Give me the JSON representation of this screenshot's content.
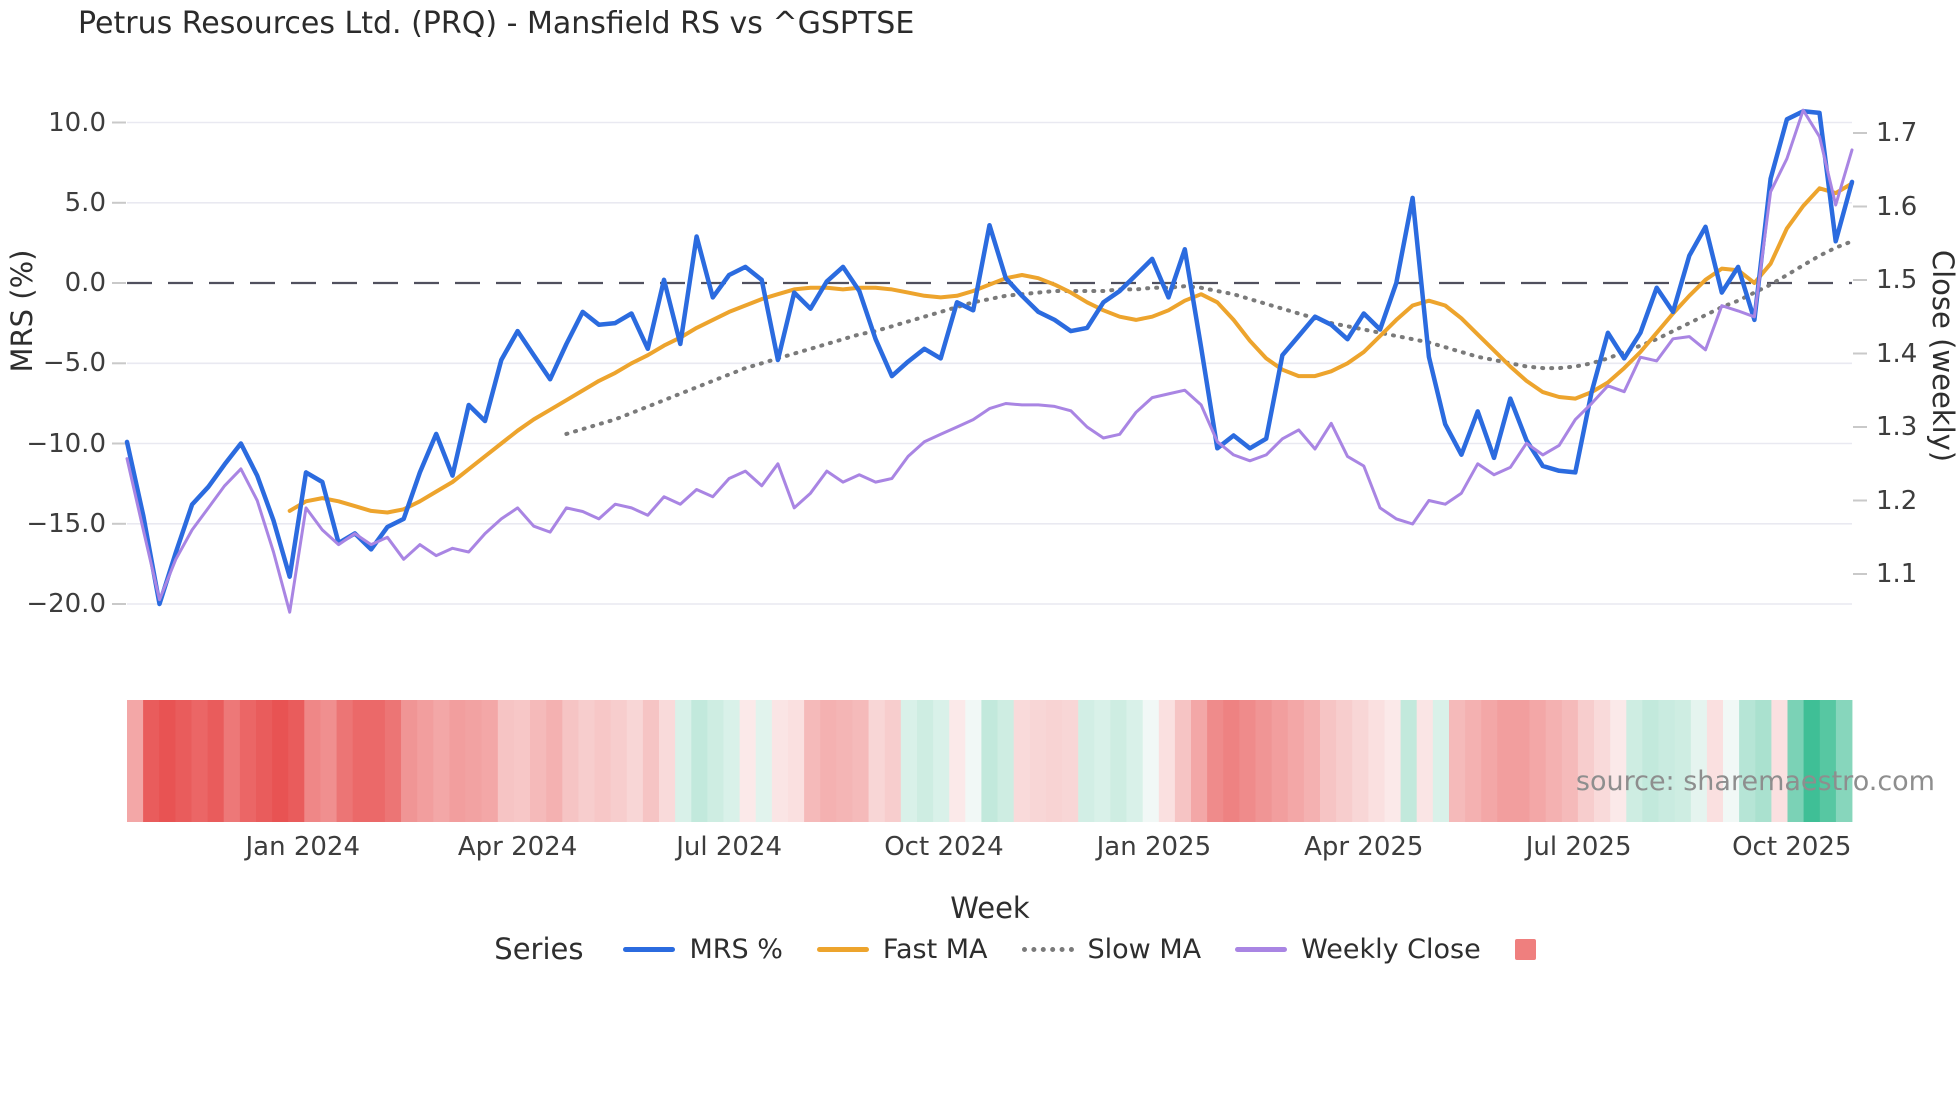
{
  "header": {
    "title": "Petrus Resources Ltd. (PRQ) - Mansfield RS vs ^GSPTSE"
  },
  "footer": {
    "source": "source: sharemaestro.com"
  },
  "chart_data": {
    "type": "line",
    "title": "Petrus Resources Ltd. (PRQ) - Mansfield RS vs ^GSPTSE",
    "xlabel": "Week",
    "ylabel_left": "MRS (%)",
    "ylabel_right": "Close (weekly)",
    "legend_title": "Series",
    "legend_swatch_color": "#ef7f7e",
    "grid": true,
    "zero_line": {
      "value": 0.0,
      "style": "dashed",
      "color": "#50505e"
    },
    "ylim_left": [
      -20.9,
      12.4
    ],
    "ylim_right": [
      1.04,
      1.77
    ],
    "n_weeks": 107,
    "x_ticks": [
      {
        "label": "Jan 2024",
        "week": 10.8
      },
      {
        "label": "Apr 2024",
        "week": 24.0
      },
      {
        "label": "Jul 2024",
        "week": 37.0
      },
      {
        "label": "Oct 2024",
        "week": 50.2
      },
      {
        "label": "Jan 2025",
        "week": 63.1
      },
      {
        "label": "Apr 2025",
        "week": 76.0
      },
      {
        "label": "Jul 2025",
        "week": 89.2
      },
      {
        "label": "Oct 2025",
        "week": 102.3
      }
    ],
    "y_ticks_left": [
      {
        "label": "10.0",
        "value": 10.0
      },
      {
        "label": "5.0",
        "value": 5.0
      },
      {
        "label": "0.0",
        "value": 0.0
      },
      {
        "label": "−5.0",
        "value": -5.0
      },
      {
        "label": "−10.0",
        "value": -10.0
      },
      {
        "label": "−15.0",
        "value": -15.0
      },
      {
        "label": "−20.0",
        "value": -20.0
      }
    ],
    "y_ticks_right": [
      {
        "label": "1.7",
        "value": 1.7
      },
      {
        "label": "1.6",
        "value": 1.6
      },
      {
        "label": "1.5",
        "value": 1.5
      },
      {
        "label": "1.4",
        "value": 1.4
      },
      {
        "label": "1.3",
        "value": 1.3
      },
      {
        "label": "1.2",
        "value": 1.2
      },
      {
        "label": "1.1",
        "value": 1.1
      }
    ],
    "series": [
      {
        "name": "MRS %",
        "color": "#2b6bdf",
        "style": "solid",
        "width": 4.5,
        "axis": "left",
        "values": [
          -9.9,
          -14.5,
          -20.0,
          -16.8,
          -13.8,
          -12.7,
          -11.3,
          -10.0,
          -12.0,
          -14.8,
          -18.3,
          -11.8,
          -12.4,
          -16.2,
          -15.6,
          -16.6,
          -15.2,
          -14.7,
          -11.8,
          -9.4,
          -12.0,
          -7.6,
          -8.6,
          -4.8,
          -3.0,
          -4.5,
          -6.0,
          -3.8,
          -1.8,
          -2.6,
          -2.5,
          -1.9,
          -4.1,
          0.2,
          -3.8,
          2.9,
          -0.9,
          0.5,
          1.0,
          0.2,
          -4.8,
          -0.6,
          -1.6,
          0.1,
          1.0,
          -0.5,
          -3.5,
          -5.8,
          -4.9,
          -4.1,
          -4.7,
          -1.2,
          -1.7,
          3.6,
          0.3,
          -0.8,
          -1.8,
          -2.3,
          -3.0,
          -2.8,
          -1.2,
          -0.5,
          0.5,
          1.5,
          -0.9,
          2.1,
          -4.0,
          -10.3,
          -9.5,
          -10.3,
          -9.7,
          -4.5,
          -3.3,
          -2.1,
          -2.6,
          -3.5,
          -1.9,
          -2.9,
          0.0,
          5.3,
          -4.6,
          -8.8,
          -10.7,
          -8.0,
          -10.9,
          -7.2,
          -9.8,
          -11.4,
          -11.7,
          -11.8,
          -6.8,
          -3.1,
          -4.7,
          -3.1,
          -0.3,
          -1.8,
          1.7,
          3.5,
          -0.6,
          1.0,
          -2.3,
          6.5,
          10.2,
          10.7,
          10.6,
          2.6,
          6.3
        ]
      },
      {
        "name": "Fast MA",
        "color": "#eda42d",
        "style": "solid",
        "width": 4,
        "axis": "left",
        "values": [
          null,
          null,
          null,
          null,
          null,
          null,
          null,
          null,
          null,
          null,
          -14.2,
          -13.6,
          -13.4,
          -13.6,
          -13.9,
          -14.2,
          -14.3,
          -14.1,
          -13.6,
          -13.0,
          -12.4,
          -11.6,
          -10.8,
          -10.0,
          -9.2,
          -8.5,
          -7.9,
          -7.3,
          -6.7,
          -6.1,
          -5.6,
          -5.0,
          -4.5,
          -3.9,
          -3.4,
          -2.8,
          -2.3,
          -1.8,
          -1.4,
          -1.0,
          -0.7,
          -0.4,
          -0.3,
          -0.3,
          -0.4,
          -0.3,
          -0.3,
          -0.4,
          -0.6,
          -0.8,
          -0.9,
          -0.8,
          -0.5,
          -0.1,
          0.3,
          0.5,
          0.3,
          -0.1,
          -0.6,
          -1.2,
          -1.7,
          -2.1,
          -2.3,
          -2.1,
          -1.7,
          -1.1,
          -0.7,
          -1.2,
          -2.3,
          -3.6,
          -4.7,
          -5.4,
          -5.8,
          -5.8,
          -5.5,
          -5.0,
          -4.3,
          -3.3,
          -2.3,
          -1.4,
          -1.1,
          -1.4,
          -2.2,
          -3.2,
          -4.2,
          -5.2,
          -6.1,
          -6.8,
          -7.1,
          -7.2,
          -6.8,
          -6.2,
          -5.3,
          -4.3,
          -3.1,
          -1.9,
          -0.8,
          0.2,
          0.9,
          0.8,
          0.0,
          1.2,
          3.4,
          4.8,
          5.9,
          5.6,
          6.2
        ]
      },
      {
        "name": "Slow MA",
        "color": "#7a7a7a",
        "style": "dotted",
        "width": 4,
        "axis": "left",
        "values": [
          null,
          null,
          null,
          null,
          null,
          null,
          null,
          null,
          null,
          null,
          null,
          null,
          null,
          null,
          null,
          null,
          null,
          null,
          null,
          null,
          null,
          null,
          null,
          null,
          null,
          null,
          null,
          -9.4,
          -9.1,
          -8.8,
          -8.5,
          -8.1,
          -7.7,
          -7.3,
          -6.9,
          -6.5,
          -6.1,
          -5.7,
          -5.3,
          -5.0,
          -4.7,
          -4.4,
          -4.1,
          -3.8,
          -3.5,
          -3.2,
          -3.0,
          -2.7,
          -2.4,
          -2.1,
          -1.8,
          -1.5,
          -1.2,
          -1.0,
          -0.8,
          -0.7,
          -0.6,
          -0.5,
          -0.5,
          -0.5,
          -0.5,
          -0.4,
          -0.4,
          -0.3,
          -0.3,
          -0.2,
          -0.3,
          -0.5,
          -0.7,
          -1.0,
          -1.3,
          -1.6,
          -1.9,
          -2.2,
          -2.5,
          -2.7,
          -2.9,
          -3.1,
          -3.3,
          -3.5,
          -3.7,
          -4.0,
          -4.3,
          -4.6,
          -4.8,
          -5.0,
          -5.2,
          -5.3,
          -5.3,
          -5.2,
          -5.0,
          -4.7,
          -4.3,
          -3.9,
          -3.5,
          -3.0,
          -2.5,
          -2.0,
          -1.5,
          -1.1,
          -0.6,
          -0.1,
          0.5,
          1.1,
          1.7,
          2.2,
          2.6
        ]
      },
      {
        "name": "Weekly Close",
        "color": "#a985e3",
        "style": "solid",
        "width": 3,
        "axis": "right",
        "values": [
          1.257,
          1.16,
          1.065,
          1.12,
          1.16,
          1.19,
          1.22,
          1.243,
          1.2,
          1.13,
          1.048,
          1.19,
          1.16,
          1.14,
          1.155,
          1.14,
          1.15,
          1.12,
          1.14,
          1.125,
          1.135,
          1.13,
          1.155,
          1.175,
          1.19,
          1.165,
          1.157,
          1.19,
          1.185,
          1.175,
          1.195,
          1.19,
          1.18,
          1.205,
          1.195,
          1.215,
          1.205,
          1.23,
          1.24,
          1.22,
          1.25,
          1.19,
          1.21,
          1.24,
          1.225,
          1.235,
          1.225,
          1.23,
          1.26,
          1.28,
          1.29,
          1.3,
          1.31,
          1.325,
          1.332,
          1.33,
          1.33,
          1.328,
          1.322,
          1.3,
          1.285,
          1.29,
          1.32,
          1.34,
          1.345,
          1.35,
          1.33,
          1.28,
          1.262,
          1.254,
          1.262,
          1.284,
          1.296,
          1.27,
          1.305,
          1.26,
          1.247,
          1.19,
          1.175,
          1.168,
          1.2,
          1.195,
          1.21,
          1.25,
          1.235,
          1.245,
          1.278,
          1.262,
          1.275,
          1.31,
          1.332,
          1.356,
          1.348,
          1.395,
          1.39,
          1.42,
          1.423,
          1.405,
          1.465,
          1.458,
          1.45,
          1.62,
          1.665,
          1.731,
          1.695,
          1.602,
          1.677
        ]
      }
    ],
    "heatmap": {
      "description": "weekly shading strip under chart, red=negative green=positive",
      "color_negative": "#e64040",
      "color_positive": "#10b07c",
      "values": [
        -0.45,
        -0.85,
        -0.9,
        -0.85,
        -0.8,
        -0.85,
        -0.7,
        -0.8,
        -0.85,
        -0.9,
        -0.85,
        -0.62,
        -0.58,
        -0.72,
        -0.78,
        -0.78,
        -0.72,
        -0.55,
        -0.5,
        -0.45,
        -0.5,
        -0.48,
        -0.45,
        -0.3,
        -0.28,
        -0.35,
        -0.4,
        -0.3,
        -0.25,
        -0.28,
        -0.25,
        -0.2,
        -0.3,
        -0.18,
        0.15,
        0.25,
        0.2,
        0.15,
        -0.1,
        0.12,
        -0.12,
        -0.15,
        -0.35,
        -0.4,
        -0.38,
        -0.35,
        -0.2,
        -0.25,
        0.15,
        0.2,
        0.15,
        -0.1,
        0.05,
        0.25,
        0.2,
        -0.18,
        -0.2,
        -0.22,
        -0.2,
        0.18,
        0.15,
        0.2,
        0.15,
        0.05,
        -0.15,
        -0.3,
        -0.45,
        -0.6,
        -0.65,
        -0.6,
        -0.55,
        -0.5,
        -0.45,
        -0.4,
        -0.3,
        -0.25,
        -0.2,
        -0.15,
        -0.1,
        0.25,
        -0.12,
        0.15,
        -0.35,
        -0.4,
        -0.45,
        -0.5,
        -0.5,
        -0.45,
        -0.4,
        -0.35,
        -0.25,
        -0.18,
        -0.1,
        0.2,
        0.25,
        0.22,
        0.2,
        0.1,
        -0.15,
        0.05,
        0.3,
        0.35,
        -0.15,
        0.55,
        0.8,
        0.7,
        0.5
      ]
    }
  }
}
